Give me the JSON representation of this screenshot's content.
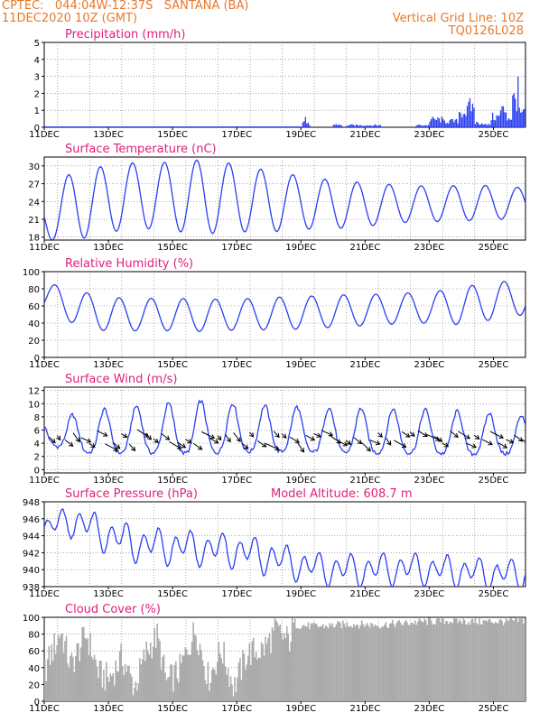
{
  "header": {
    "line1_left": "CPTEC:   044:04W-12:37S   SANTANA (BA)",
    "line2_left": "11DEC2020 10Z (GMT)",
    "line1_right": "Vertical Grid Line: 10Z",
    "line2_right": "TQ0126L028",
    "color": "#e8782a"
  },
  "colors": {
    "title": "#e0207a",
    "line": "#2b3ff0",
    "bar": "#2b3ff0",
    "cloud": "#aaaaaa",
    "arrow": "#000000"
  },
  "x_axis": {
    "start_day": 11,
    "end_day": 26,
    "tick_labels": [
      "11DEC",
      "13DEC",
      "15DEC",
      "17DEC",
      "19DEC",
      "21DEC",
      "23DEC",
      "25DEC"
    ]
  },
  "chart_data": [
    {
      "id": "precip",
      "type": "bar",
      "title": "Precipitation (mm/h)",
      "ylim": [
        0,
        5
      ],
      "yticks": [
        "0",
        "1",
        "2",
        "3",
        "4",
        "5"
      ],
      "segments": [
        {
          "from": 11.0,
          "to": 19.0,
          "level": 0.05
        },
        {
          "from": 19.05,
          "to": 19.15,
          "level": 0.45
        },
        {
          "from": 19.15,
          "to": 19.3,
          "level": 0.2
        },
        {
          "from": 20.0,
          "to": 20.3,
          "level": 0.15
        },
        {
          "from": 20.4,
          "to": 21.5,
          "level": 0.12
        },
        {
          "from": 22.6,
          "to": 23.0,
          "level": 0.12
        },
        {
          "from": 23.0,
          "to": 23.4,
          "level": 0.45
        },
        {
          "from": 23.4,
          "to": 23.9,
          "level": 0.35
        },
        {
          "from": 23.9,
          "to": 24.2,
          "level": 0.9
        },
        {
          "from": 24.2,
          "to": 24.4,
          "level": 1.2
        },
        {
          "from": 24.4,
          "to": 24.7,
          "level": 0.25
        },
        {
          "from": 24.7,
          "to": 24.9,
          "level": 0.15
        },
        {
          "from": 24.9,
          "to": 25.2,
          "level": 0.6
        },
        {
          "from": 25.2,
          "to": 25.4,
          "level": 1.0
        },
        {
          "from": 25.4,
          "to": 25.6,
          "level": 0.55
        },
        {
          "from": 25.6,
          "to": 25.75,
          "level": 1.6
        },
        {
          "from": 25.75,
          "to": 25.8,
          "level": 3.3
        },
        {
          "from": 25.8,
          "to": 26.0,
          "level": 0.8
        }
      ]
    },
    {
      "id": "temp",
      "type": "line",
      "title": "Surface Temperature (nC)",
      "ylim": [
        17.5,
        31.5
      ],
      "yticks": [
        "18",
        "21",
        "24",
        "27",
        "30"
      ],
      "ytick_values": [
        18,
        21,
        24,
        27,
        30
      ],
      "mean": [
        21.5,
        23.5,
        24.4,
        25.1,
        24.8,
        24.8,
        24.6,
        24.0,
        23.8,
        23.5,
        23.5,
        23.6,
        23.6,
        23.7,
        23.8,
        23.8
      ],
      "amp": [
        4.0,
        6.0,
        5.6,
        5.6,
        5.8,
        6.3,
        5.7,
        5.2,
        4.5,
        4.1,
        3.7,
        3.2,
        3.0,
        3.0,
        2.9,
        2.5
      ]
    },
    {
      "id": "rh",
      "type": "line",
      "title": "Relative Humidity (%)",
      "ylim": [
        0,
        100
      ],
      "yticks": [
        "0",
        "20",
        "40",
        "60",
        "80",
        "100"
      ],
      "ytick_values": [
        0,
        20,
        40,
        60,
        80,
        100
      ],
      "mean": [
        72,
        58,
        50,
        50,
        50,
        49,
        50,
        51,
        52,
        54,
        55,
        57,
        58,
        60,
        66,
        70
      ],
      "amp": [
        16,
        20,
        20,
        19,
        19,
        19,
        18,
        19,
        19,
        19,
        18,
        18,
        18,
        22,
        22,
        20
      ]
    },
    {
      "id": "wind",
      "type": "line",
      "title": "Surface Wind (m/s)",
      "ylim": [
        -0.5,
        12.5
      ],
      "yticks": [
        "0",
        "2",
        "4",
        "6",
        "8",
        "10",
        "12"
      ],
      "ytick_values": [
        0,
        2,
        4,
        6,
        8,
        10,
        12
      ],
      "mean": [
        5.5,
        5.0,
        5.3,
        5.5,
        5.6,
        5.8,
        5.7,
        5.6,
        5.5,
        5.4,
        5.3,
        5.3,
        5.2,
        5.0,
        4.9,
        4.8
      ],
      "amp": [
        2.0,
        3.4,
        4.0,
        4.2,
        4.5,
        4.7,
        4.3,
        4.1,
        4.0,
        4.0,
        4.0,
        3.9,
        3.9,
        3.8,
        3.6,
        3.4
      ],
      "arrows_every_hours": 6,
      "arrow_start_day": 11.15
    },
    {
      "id": "press",
      "type": "line",
      "title": "Surface Pressure (hPa)",
      "annotation": "Model Altitude: 608.7 m",
      "ylim": [
        938,
        948
      ],
      "yticks": [
        "938",
        "940",
        "942",
        "944",
        "946",
        "948"
      ],
      "ytick_values": [
        938,
        940,
        942,
        944,
        946,
        948
      ],
      "mean": [
        945.0,
        945.8,
        944.0,
        943.0,
        942.7,
        942.5,
        942.3,
        941.5,
        940.5,
        940.0,
        940.0,
        940.2,
        940.0,
        939.8,
        939.5,
        939.5
      ],
      "amp": [
        1.4,
        1.8,
        2.1,
        2.1,
        2.0,
        2.0,
        2.0,
        2.0,
        1.9,
        1.9,
        1.9,
        1.9,
        1.8,
        1.8,
        1.8,
        1.8
      ]
    },
    {
      "id": "cloud",
      "type": "area",
      "title": "Cloud Cover (%)",
      "ylim": [
        0,
        100
      ],
      "yticks": [
        "0",
        "20",
        "40",
        "60",
        "80",
        "100"
      ],
      "ytick_values": [
        0,
        20,
        40,
        60,
        80,
        100
      ],
      "envelope": [
        {
          "day": 11.0,
          "value": 35
        },
        {
          "day": 11.2,
          "value": 55
        },
        {
          "day": 11.5,
          "value": 82
        },
        {
          "day": 11.8,
          "value": 40
        },
        {
          "day": 12.3,
          "value": 78
        },
        {
          "day": 12.7,
          "value": 30
        },
        {
          "day": 13.0,
          "value": 25
        },
        {
          "day": 13.4,
          "value": 50
        },
        {
          "day": 13.8,
          "value": 15
        },
        {
          "day": 14.2,
          "value": 60
        },
        {
          "day": 14.5,
          "value": 75
        },
        {
          "day": 14.8,
          "value": 20
        },
        {
          "day": 15.2,
          "value": 35
        },
        {
          "day": 15.7,
          "value": 85
        },
        {
          "day": 16.1,
          "value": 25
        },
        {
          "day": 16.5,
          "value": 60
        },
        {
          "day": 16.9,
          "value": 15
        },
        {
          "day": 17.3,
          "value": 55
        },
        {
          "day": 17.8,
          "value": 60
        },
        {
          "day": 18.2,
          "value": 82
        },
        {
          "day": 18.6,
          "value": 70
        },
        {
          "day": 18.8,
          "value": 92
        },
        {
          "day": 19.5,
          "value": 90
        },
        {
          "day": 20.5,
          "value": 93
        },
        {
          "day": 21.5,
          "value": 92
        },
        {
          "day": 22.5,
          "value": 95
        },
        {
          "day": 23.5,
          "value": 97
        },
        {
          "day": 24.5,
          "value": 96
        },
        {
          "day": 25.5,
          "value": 96
        },
        {
          "day": 26.0,
          "value": 98
        }
      ]
    }
  ]
}
